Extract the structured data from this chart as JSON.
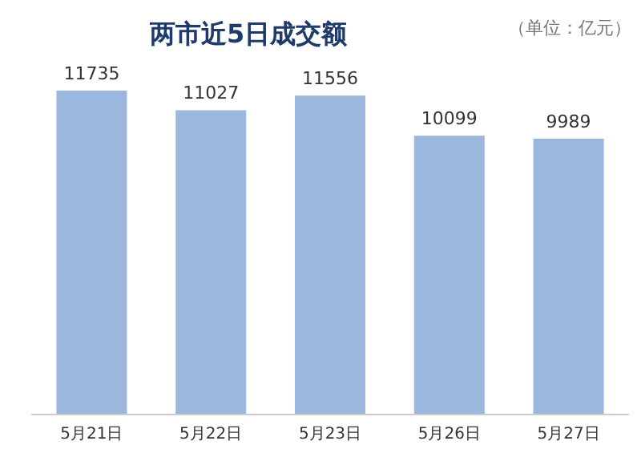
{
  "chart_data": {
    "type": "bar",
    "title": "两市近5日成交额",
    "annotations": [
      "（单位：亿元）"
    ],
    "categories": [
      "5月21日",
      "5月22日",
      "5月23日",
      "5月26日",
      "5月27日"
    ],
    "values": [
      11735,
      11027,
      11556,
      10099,
      9989
    ],
    "color": "#9bb7dd",
    "data_labels": true
  }
}
